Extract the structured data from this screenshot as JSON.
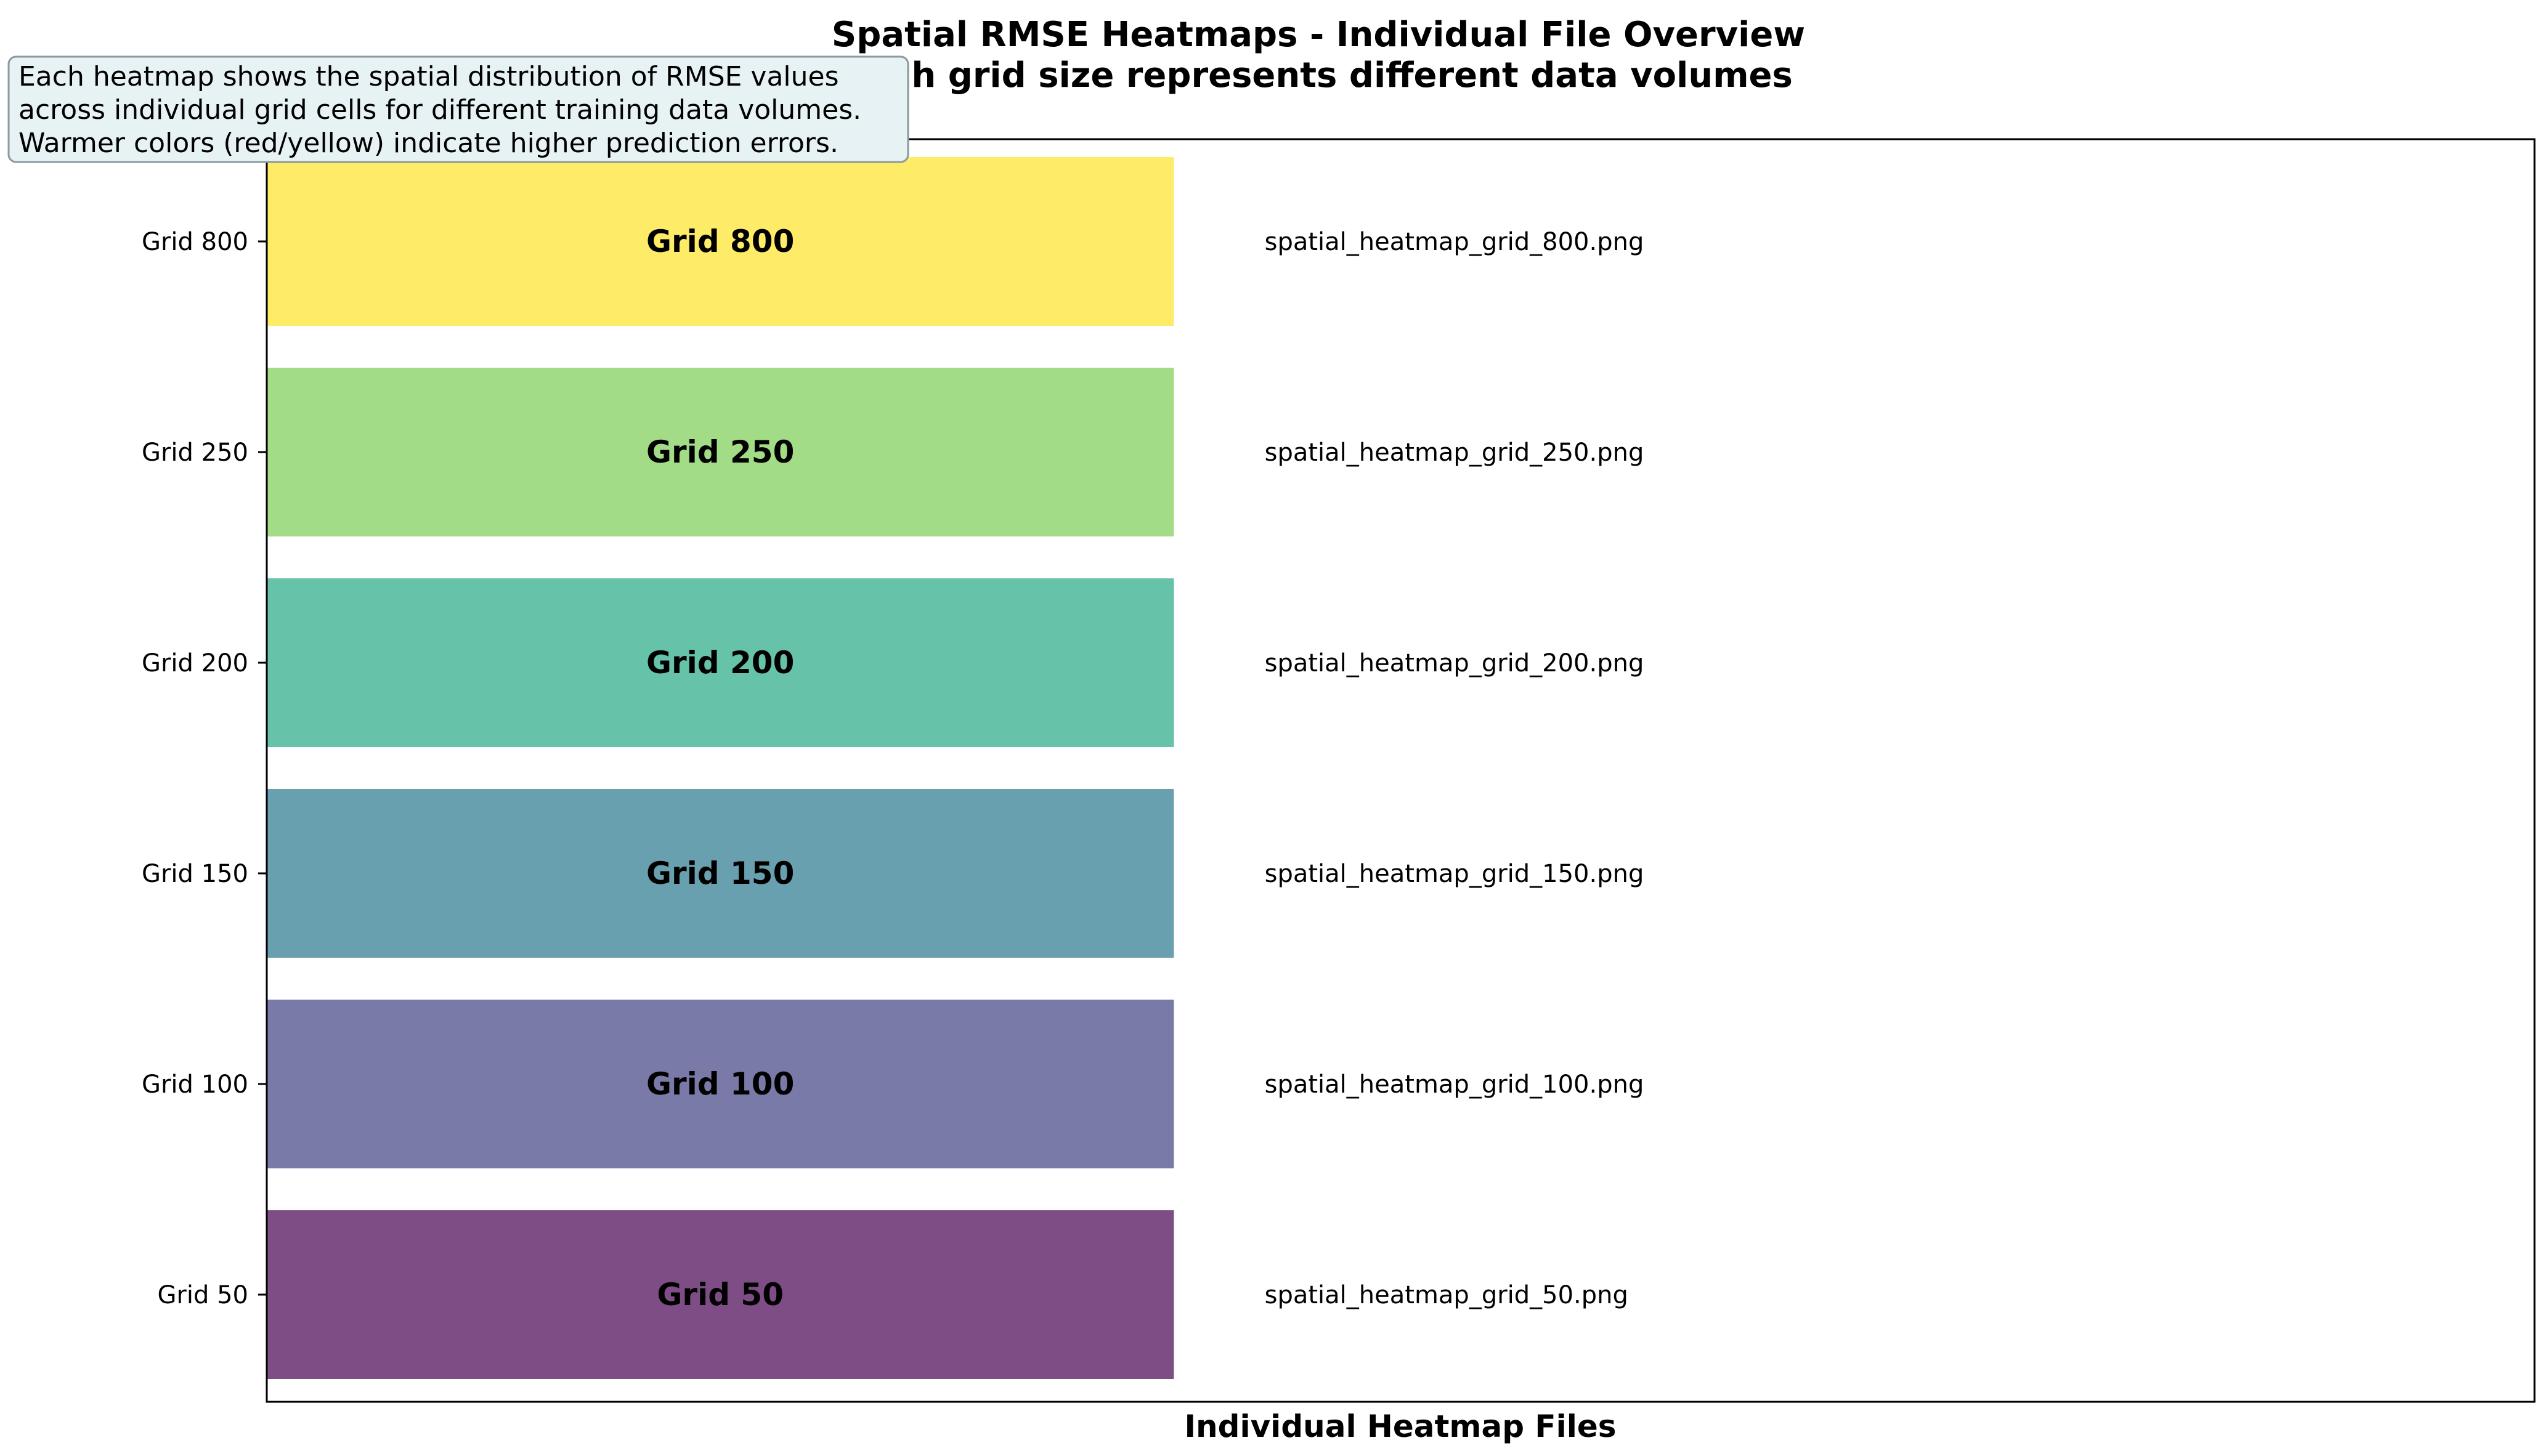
{
  "chart_data": {
    "type": "bar",
    "orientation": "horizontal",
    "title": [
      "Spatial RMSE Heatmaps - Individual File Overview",
      "Each grid size represents different data volumes"
    ],
    "xlabel": "Individual Heatmap Files",
    "ylabel": "",
    "categories": [
      "Grid 50",
      "Grid 100",
      "Grid 150",
      "Grid 200",
      "Grid 250",
      "Grid 800"
    ],
    "values": [
      1,
      1,
      1,
      1,
      1,
      1
    ],
    "bar_labels": [
      "Grid 50",
      "Grid 100",
      "Grid 150",
      "Grid 200",
      "Grid 250",
      "Grid 800"
    ],
    "file_labels": [
      "spatial_heatmap_grid_50.png",
      "spatial_heatmap_grid_100.png",
      "spatial_heatmap_grid_150.png",
      "spatial_heatmap_grid_200.png",
      "spatial_heatmap_grid_250.png",
      "spatial_heatmap_grid_800.png"
    ],
    "colors": [
      "#7e4d85",
      "#7a7aa9",
      "#69a0b0",
      "#66c2a8",
      "#a3dc86",
      "#feeb68"
    ],
    "xlim": [
      0,
      2.5
    ],
    "grid": false,
    "legend": "none",
    "annotation": [
      "Each heatmap shows the spatial distribution of RMSE values",
      "across individual grid cells for different training data volumes.",
      "Warmer colors (red/yellow) indicate higher prediction errors."
    ]
  }
}
